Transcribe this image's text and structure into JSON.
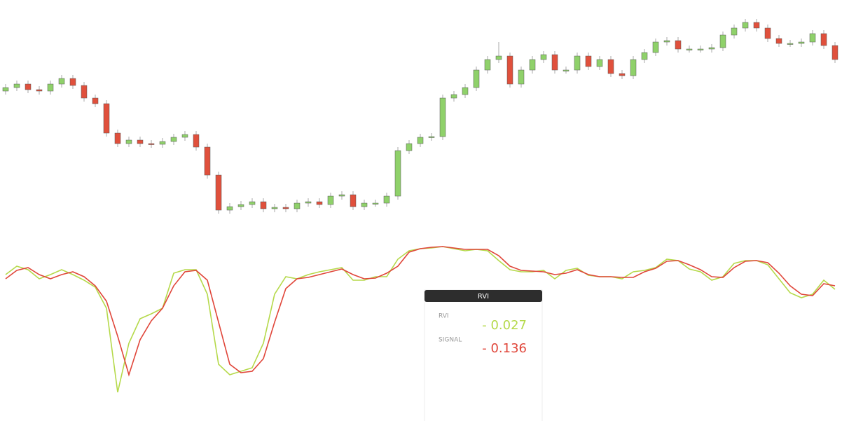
{
  "chart_data": [
    {
      "type": "candlestick",
      "up_color": "#8fd16a",
      "down_color": "#e0503c",
      "open": [
        210,
        215,
        220,
        212,
        210,
        220,
        228,
        218,
        200,
        192,
        150,
        135,
        140,
        135,
        134,
        138,
        144,
        148,
        130,
        90,
        40,
        45,
        48,
        52,
        42,
        44,
        42,
        50,
        52,
        48,
        60,
        62,
        45,
        50,
        50,
        60,
        125,
        135,
        144,
        145,
        200,
        205,
        215,
        240,
        255,
        260,
        220,
        240,
        255,
        262,
        240,
        240,
        260,
        245,
        255,
        235,
        232,
        255,
        265,
        280,
        282,
        270,
        270,
        270,
        272,
        290,
        300,
        308,
        300,
        285,
        278,
        278,
        280,
        292,
        275
      ],
      "high": [
        220,
        225,
        225,
        217,
        225,
        233,
        233,
        223,
        205,
        197,
        155,
        145,
        145,
        140,
        143,
        149,
        153,
        153,
        135,
        95,
        50,
        53,
        57,
        57,
        49,
        49,
        55,
        57,
        57,
        65,
        67,
        67,
        55,
        55,
        65,
        130,
        140,
        149,
        150,
        205,
        210,
        220,
        245,
        260,
        280,
        265,
        245,
        260,
        267,
        267,
        245,
        265,
        265,
        260,
        260,
        240,
        260,
        270,
        285,
        287,
        287,
        275,
        275,
        277,
        295,
        305,
        313,
        313,
        305,
        290,
        283,
        285,
        297,
        297,
        280
      ],
      "low": [
        205,
        210,
        207,
        205,
        205,
        215,
        213,
        195,
        187,
        145,
        130,
        130,
        130,
        129,
        129,
        133,
        139,
        125,
        85,
        35,
        35,
        40,
        43,
        37,
        37,
        37,
        37,
        45,
        43,
        43,
        55,
        40,
        40,
        45,
        45,
        55,
        120,
        130,
        139,
        140,
        195,
        200,
        210,
        235,
        250,
        215,
        215,
        235,
        250,
        235,
        235,
        235,
        240,
        240,
        230,
        227,
        227,
        250,
        260,
        275,
        265,
        265,
        265,
        265,
        267,
        285,
        295,
        295,
        280,
        273,
        273,
        273,
        275,
        270,
        250
      ],
      "close": [
        215,
        220,
        212,
        210,
        220,
        228,
        218,
        200,
        192,
        150,
        135,
        140,
        135,
        134,
        138,
        144,
        148,
        130,
        90,
        40,
        45,
        48,
        52,
        42,
        44,
        42,
        50,
        52,
        48,
        60,
        62,
        45,
        50,
        50,
        60,
        125,
        135,
        144,
        145,
        200,
        205,
        215,
        240,
        255,
        260,
        220,
        240,
        255,
        262,
        240,
        240,
        260,
        245,
        255,
        235,
        232,
        255,
        265,
        280,
        282,
        270,
        270,
        270,
        272,
        290,
        300,
        308,
        300,
        285,
        278,
        278,
        280,
        292,
        275,
        255
      ],
      "ylim": [
        0,
        340
      ]
    },
    {
      "type": "line",
      "series": [
        {
          "name": "RVI",
          "color": "#b5d94a",
          "values": [
            0.39,
            0.45,
            0.425,
            0.36,
            0.39,
            0.425,
            0.39,
            0.35,
            0.3,
            0.15,
            -0.45,
            -0.1,
            0.075,
            0.11,
            0.15,
            0.4,
            0.425,
            0.425,
            0.25,
            -0.25,
            -0.325,
            -0.3,
            -0.275,
            -0.1,
            0.25,
            0.375,
            0.36,
            0.39,
            0.41,
            0.425,
            0.44,
            0.35,
            0.35,
            0.375,
            0.375,
            0.5,
            0.56,
            0.575,
            0.58,
            0.59,
            0.575,
            0.56,
            0.57,
            0.56,
            0.49,
            0.425,
            0.41,
            0.41,
            0.42,
            0.36,
            0.42,
            0.435,
            0.385,
            0.375,
            0.375,
            0.36,
            0.41,
            0.42,
            0.44,
            0.5,
            0.49,
            0.43,
            0.41,
            0.35,
            0.375,
            0.47,
            0.49,
            0.49,
            0.46,
            0.36,
            0.26,
            0.225,
            0.25,
            0.35,
            0.285
          ]
        },
        {
          "name": "SIGNAL",
          "color": "#e0463a",
          "values": [
            0.36,
            0.42,
            0.44,
            0.39,
            0.36,
            0.39,
            0.41,
            0.375,
            0.31,
            0.2,
            -0.05,
            -0.325,
            -0.075,
            0.06,
            0.15,
            0.31,
            0.41,
            0.42,
            0.35,
            0.05,
            -0.25,
            -0.31,
            -0.3,
            -0.21,
            0.05,
            0.29,
            0.36,
            0.37,
            0.39,
            0.41,
            0.43,
            0.39,
            0.36,
            0.365,
            0.4,
            0.45,
            0.55,
            0.575,
            0.585,
            0.59,
            0.58,
            0.57,
            0.57,
            0.57,
            0.525,
            0.45,
            0.42,
            0.415,
            0.41,
            0.39,
            0.4,
            0.425,
            0.39,
            0.375,
            0.375,
            0.37,
            0.37,
            0.41,
            0.435,
            0.485,
            0.49,
            0.46,
            0.425,
            0.375,
            0.37,
            0.44,
            0.485,
            0.49,
            0.475,
            0.4,
            0.31,
            0.25,
            0.24,
            0.325,
            0.31
          ]
        }
      ],
      "ylim": [
        -0.65,
        0.65
      ]
    }
  ],
  "tooltip": {
    "title": "RVI",
    "rows": [
      {
        "label": "RVI",
        "value": "- 0.027",
        "color": "#b5d94a"
      },
      {
        "label": "SIGNAL",
        "value": "- 0.136",
        "color": "#e0463a"
      }
    ]
  }
}
